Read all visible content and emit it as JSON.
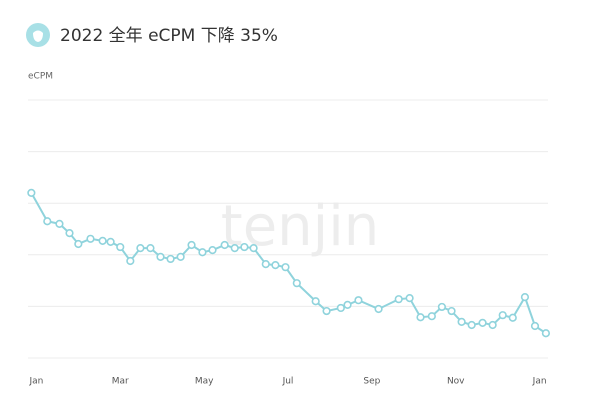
{
  "chart_data": {
    "type": "line",
    "title": "2022 全年 eCPM 下降 35%",
    "y_label": "eCPM",
    "watermark": "tenjin",
    "xlim": [
      -0.2,
      12.2
    ],
    "xticks": [
      {
        "value": 0,
        "label": "Jan"
      },
      {
        "value": 2,
        "label": "Mar"
      },
      {
        "value": 4,
        "label": "May"
      },
      {
        "value": 6,
        "label": "Jul"
      },
      {
        "value": 8,
        "label": "Sep"
      },
      {
        "value": 10,
        "label": "Nov"
      },
      {
        "value": 12,
        "label": "Jan"
      }
    ],
    "ylim": [
      0,
      5
    ],
    "yticks": [
      0,
      1,
      2,
      3,
      4,
      5
    ],
    "ytick_labels": false,
    "grid": true,
    "x": [
      -0.12,
      0.26,
      0.55,
      0.79,
      1.0,
      1.29,
      1.58,
      1.77,
      2.0,
      2.24,
      2.48,
      2.72,
      2.96,
      3.2,
      3.44,
      3.7,
      3.96,
      4.2,
      4.49,
      4.73,
      4.96,
      5.18,
      5.47,
      5.7,
      5.94,
      6.21,
      6.66,
      6.92,
      7.26,
      7.42,
      7.68,
      8.16,
      8.64,
      8.9,
      9.16,
      9.43,
      9.67,
      9.9,
      10.14,
      10.38,
      10.64,
      10.88,
      11.12,
      11.36,
      11.65,
      11.89,
      12.15
    ],
    "series": [
      {
        "color": "#8fd3dc",
        "values": [
          3.2,
          2.65,
          2.6,
          2.42,
          2.21,
          2.31,
          2.27,
          2.25,
          2.15,
          1.88,
          2.13,
          2.13,
          1.96,
          1.92,
          1.96,
          2.19,
          2.05,
          2.09,
          2.19,
          2.13,
          2.15,
          2.13,
          1.82,
          1.8,
          1.76,
          1.45,
          1.1,
          0.91,
          0.97,
          1.03,
          1.12,
          0.95,
          1.14,
          1.16,
          0.79,
          0.81,
          0.99,
          0.91,
          0.7,
          0.64,
          0.68,
          0.64,
          0.83,
          0.78,
          1.18,
          0.62,
          0.48
        ]
      }
    ]
  }
}
